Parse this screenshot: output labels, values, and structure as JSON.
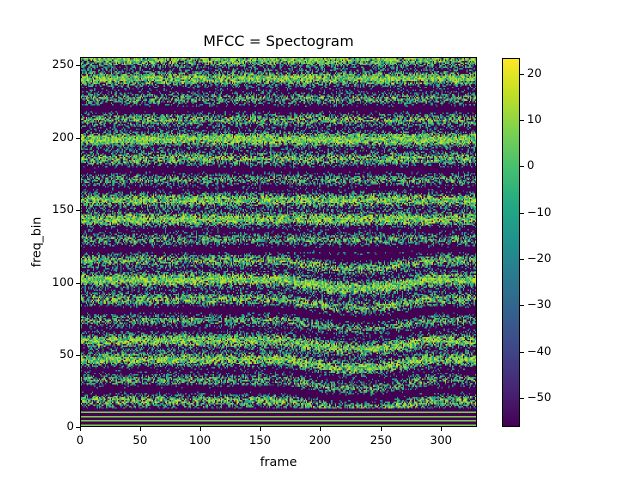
{
  "chart_data": {
    "type": "heatmap",
    "title": "MFCC = Spectogram",
    "xlabel": "frame",
    "ylabel": "freq_bin",
    "xlim": [
      0,
      330
    ],
    "ylim": [
      0,
      256
    ],
    "xticks": [
      0,
      50,
      100,
      150,
      200,
      250,
      300
    ],
    "yticks": [
      0,
      50,
      100,
      150,
      200,
      250
    ],
    "colormap": "viridis",
    "colorbar": {
      "vmin": -56,
      "vmax": 24,
      "ticks": [
        20,
        10,
        0,
        -10,
        -20,
        -30,
        -40,
        -50
      ],
      "tick_labels": [
        "20",
        "10",
        "0",
        "−10",
        "−20",
        "−30",
        "−40",
        "−50"
      ]
    },
    "grid": false,
    "description": "Spectrogram-like heatmap of 330 frames x 256 frequency bins; noisy speckle pattern of dark purple (~-56) and green/yellow (~0 to 20) with horizontal banding, stronger harmonic bands in lower bins (0-120), curved harmonic structures around frames 180-280."
  },
  "labels": {
    "title": "MFCC = Spectogram",
    "xlabel": "frame",
    "ylabel": "freq_bin"
  },
  "xticks": [
    "0",
    "50",
    "100",
    "150",
    "200",
    "250",
    "300"
  ],
  "yticks": [
    "0",
    "50",
    "100",
    "150",
    "200",
    "250"
  ],
  "cticks": [
    "20",
    "10",
    "0",
    "−10",
    "−20",
    "−30",
    "−40",
    "−50"
  ]
}
